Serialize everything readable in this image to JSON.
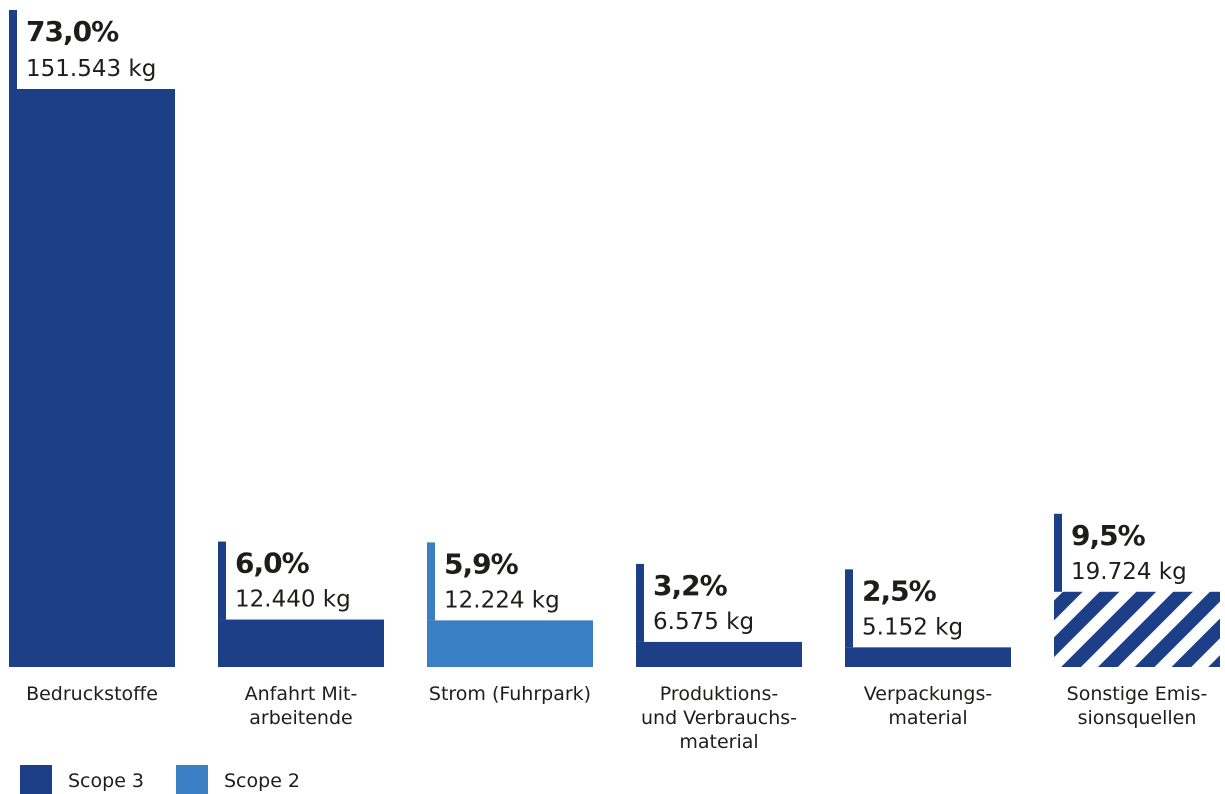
{
  "chart_data": {
    "type": "bar",
    "categories": [
      "Bedruckstoffe",
      "Anfahrt Mitarbeitende",
      "Strom (Fuhrpark)",
      "Produktions- und Verbrauchsmaterial",
      "Verpackungsmaterial",
      "Sonstige Emissionsquellen"
    ],
    "category_lines": [
      [
        "Bedruckstoffe"
      ],
      [
        "Anfahrt Mit-",
        "arbeitende"
      ],
      [
        "Strom (Fuhrpark)"
      ],
      [
        "Produktions-",
        "und Verbrauchs-",
        "material"
      ],
      [
        "Verpackungs-",
        "material"
      ],
      [
        "Sonstige Emis-",
        "sionsquellen"
      ]
    ],
    "values_kg": [
      151543,
      12440,
      12224,
      6575,
      5152,
      19724
    ],
    "value_labels": [
      "151.543 kg",
      "12.440 kg",
      "12.224 kg",
      "6.575 kg",
      "5.152 kg",
      "19.724 kg"
    ],
    "percent_labels": [
      "73,0%",
      "6,0%",
      "5,9%",
      "3,2%",
      "2,5%",
      "9,5%"
    ],
    "scopes": [
      "Scope 3",
      "Scope 3",
      "Scope 2",
      "Scope 3",
      "Scope 3",
      "Scope 3"
    ],
    "patterns": [
      "solid",
      "solid",
      "solid",
      "solid",
      "solid",
      "hatched"
    ],
    "legend": [
      {
        "label": "Scope 3",
        "color": "#1c3f87"
      },
      {
        "label": "Scope 2",
        "color": "#3a7fc4"
      }
    ],
    "colors": {
      "Scope 3": "#1c3f87",
      "Scope 2": "#3a7fc4",
      "text": "#1d1d1b"
    },
    "legend_position": "bottom-left",
    "grid": false
  }
}
